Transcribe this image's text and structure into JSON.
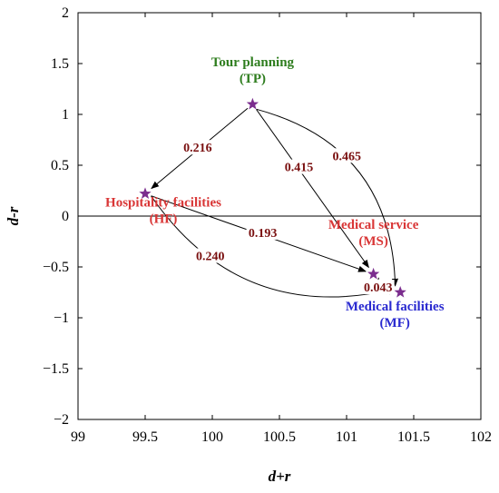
{
  "chart_data": {
    "type": "scatter",
    "xlabel": "d+r",
    "ylabel": "d-r",
    "xlim": [
      99,
      102
    ],
    "ylim": [
      -2,
      2
    ],
    "xticks": [
      "99",
      "99.5",
      "100",
      "100.5",
      "101",
      "101.5",
      "102"
    ],
    "yticks": [
      "2",
      "1.5",
      "1",
      "0.5",
      "0",
      "−0.5",
      "−1",
      "−1.5",
      "−2"
    ],
    "grid": false,
    "zero_line": true,
    "marker_color": "#7b2d8e",
    "points": [
      {
        "id": "TP",
        "x": 100.3,
        "y": 1.1,
        "label_lines": [
          "Tour planning",
          "(TP)"
        ],
        "label_color": "#2e7d1e"
      },
      {
        "id": "HF",
        "x": 99.5,
        "y": 0.22,
        "label_lines": [
          "Hospitality facilities",
          "(HF)"
        ],
        "label_color": "#d93636"
      },
      {
        "id": "MS",
        "x": 101.2,
        "y": -0.57,
        "label_lines": [
          "Medical service",
          "(MS)"
        ],
        "label_color": "#d93636"
      },
      {
        "id": "MF",
        "x": 101.4,
        "y": -0.75,
        "label_lines": [
          "Medical facilities",
          "(MF)"
        ],
        "label_color": "#2a2ad0"
      }
    ],
    "edges": [
      {
        "from": "TP",
        "to": "HF",
        "value": "0.216"
      },
      {
        "from": "TP",
        "to": "MS",
        "value": "0.415"
      },
      {
        "from": "TP",
        "to": "MF",
        "value": "0.465"
      },
      {
        "from": "HF",
        "to": "MS",
        "value": "0.193"
      },
      {
        "from": "HF",
        "to": "MF",
        "value": "0.240"
      },
      {
        "from": "MS",
        "to": "MF",
        "value": "0.043"
      }
    ]
  }
}
